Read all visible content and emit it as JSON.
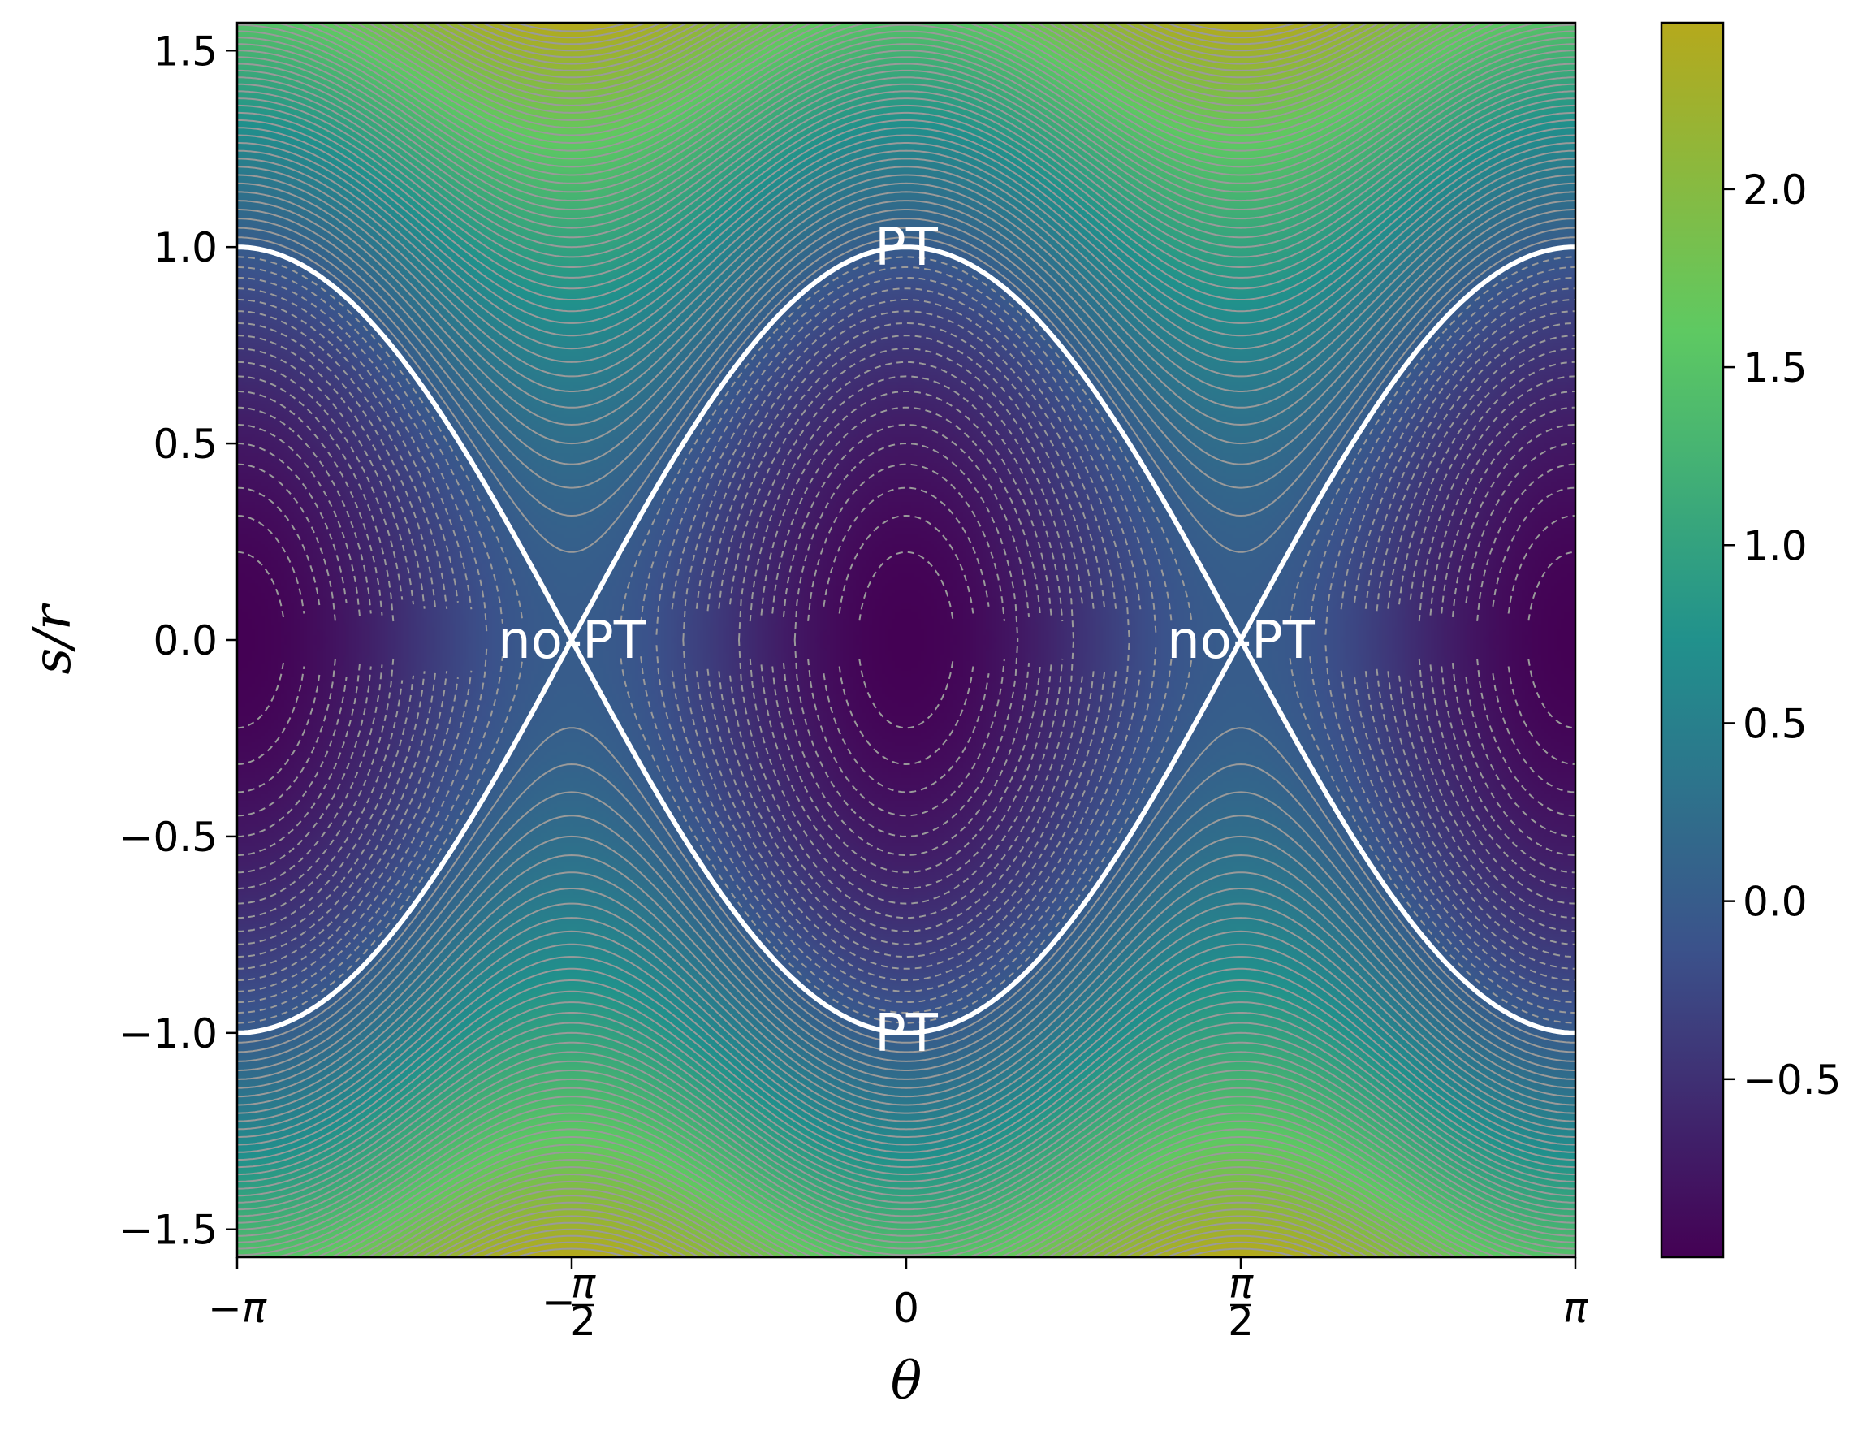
{
  "chart_data": {
    "type": "heatmap",
    "function": "value = s²/r² − cos²θ",
    "x": {
      "label": "θ",
      "range": [
        -3.14159265,
        3.14159265
      ],
      "ticks": [
        {
          "value": -3.14159265,
          "label": "−π"
        },
        {
          "value": -1.5707963,
          "label": "−π/2"
        },
        {
          "value": 0,
          "label": "0"
        },
        {
          "value": 1.5707963,
          "label": "π/2"
        },
        {
          "value": 3.14159265,
          "label": "π"
        }
      ]
    },
    "y": {
      "label": "s/r",
      "range": [
        -1.5707963,
        1.5707963
      ],
      "ticks": [
        {
          "value": 1.5,
          "label": "1.5"
        },
        {
          "value": 1.0,
          "label": "1.0"
        },
        {
          "value": 0.5,
          "label": "0.5"
        },
        {
          "value": 0.0,
          "label": "0.0"
        },
        {
          "value": -0.5,
          "label": "−0.5"
        },
        {
          "value": -1.0,
          "label": "−1.0"
        },
        {
          "value": -1.5,
          "label": "−1.5"
        }
      ]
    },
    "colorbar": {
      "range": [
        -1.0,
        2.4674
      ],
      "colormap": [
        "#440154",
        "#3b528b",
        "#21918c",
        "#5ec962",
        "#b5a91c"
      ],
      "ticks": [
        {
          "value": 2.0,
          "label": "2.0"
        },
        {
          "value": 1.5,
          "label": "1.5"
        },
        {
          "value": 1.0,
          "label": "1.0"
        },
        {
          "value": 0.5,
          "label": "0.5"
        },
        {
          "value": 0.0,
          "label": "0.0"
        },
        {
          "value": -0.5,
          "label": "−0.5"
        }
      ]
    },
    "contours": {
      "negative_levels": [
        -0.95,
        -0.9,
        -0.85,
        -0.8,
        -0.75,
        -0.7,
        -0.65,
        -0.6,
        -0.55,
        -0.5,
        -0.45,
        -0.4,
        -0.35,
        -0.3,
        -0.25,
        -0.2,
        -0.15,
        -0.1,
        -0.05
      ],
      "negative_style": "dashed",
      "positive_levels": [
        0.05,
        0.1,
        0.15,
        0.2,
        0.25,
        0.3,
        0.35,
        0.4,
        0.45,
        0.5,
        0.55,
        0.6,
        0.65,
        0.7,
        0.75,
        0.8,
        0.85,
        0.9,
        0.95,
        1.0,
        1.05,
        1.1,
        1.15,
        1.2,
        1.25,
        1.3,
        1.35,
        1.4,
        1.45,
        1.5,
        1.55,
        1.6,
        1.65,
        1.7,
        1.75,
        1.8,
        1.85,
        1.9,
        1.95,
        2.0,
        2.05,
        2.1,
        2.15,
        2.2,
        2.25,
        2.3,
        2.35,
        2.4
      ],
      "positive_style": "solid",
      "line_color": "#9a9a9a",
      "boundary": {
        "level": 0,
        "color": "#ffffff",
        "equation": "s/r = ±|cos θ|"
      }
    },
    "annotations": [
      {
        "text": "PT",
        "x": 0,
        "y": 1.0
      },
      {
        "text": "PT",
        "x": 0,
        "y": -1.0
      },
      {
        "text": "no-PT",
        "x": -1.5707963,
        "y": 0.0
      },
      {
        "text": "no-PT",
        "x": 1.5707963,
        "y": 0.0
      }
    ]
  }
}
